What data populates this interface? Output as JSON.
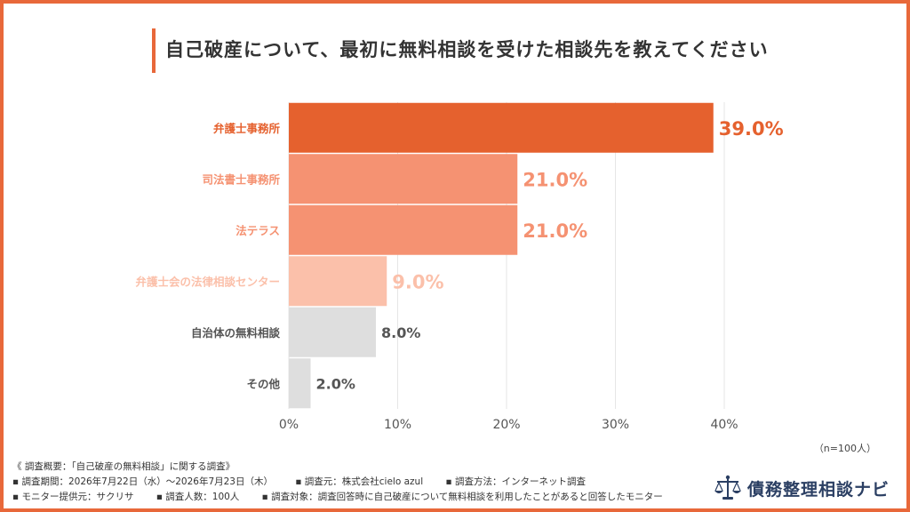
{
  "title": "自己破産について、最初に無料相談を受けた相談先を教えてください",
  "sample_note": "（n=100人）",
  "notes": {
    "summary": "《 調査概要：「自己破産の無料相談」に関する調査》",
    "period": "▪ 調査期間：2026年7月22日（水）〜2026年7月23日（木）",
    "source": "▪ 調査元：株式会社cielo azul",
    "method": "▪ 調査方法：インターネット調査",
    "provider": "▪ モニター提供元：サクリサ",
    "count": "▪ 調査人数：100人",
    "target": "▪ 調査対象：調査回答時に自己破産について無料相談を利用したことがあると回答したモニター"
  },
  "logo": {
    "text": "債務整理相談ナビ",
    "icon": "scales-icon"
  },
  "chart_data": {
    "type": "bar",
    "orientation": "horizontal",
    "categories": [
      "弁護士事務所",
      "司法書士事務所",
      "法テラス",
      "弁護士会の法律相談センター",
      "自治体の無料相談",
      "その他"
    ],
    "values": [
      39.0,
      21.0,
      21.0,
      9.0,
      8.0,
      2.0
    ],
    "value_labels": [
      "39.0%",
      "21.0%",
      "21.0%",
      "9.0%",
      "8.0%",
      "2.0%"
    ],
    "bar_colors": [
      "#e5612e",
      "#f59272",
      "#f59272",
      "#fbc0aa",
      "#dedede",
      "#dedede"
    ],
    "label_colors": [
      "#e5612e",
      "#f59272",
      "#f59272",
      "#fbc0aa",
      "#555555",
      "#555555"
    ],
    "xlim": [
      0,
      40
    ],
    "xticks": [
      "0%",
      "10%",
      "20%",
      "30%",
      "40%"
    ],
    "grid": true
  }
}
